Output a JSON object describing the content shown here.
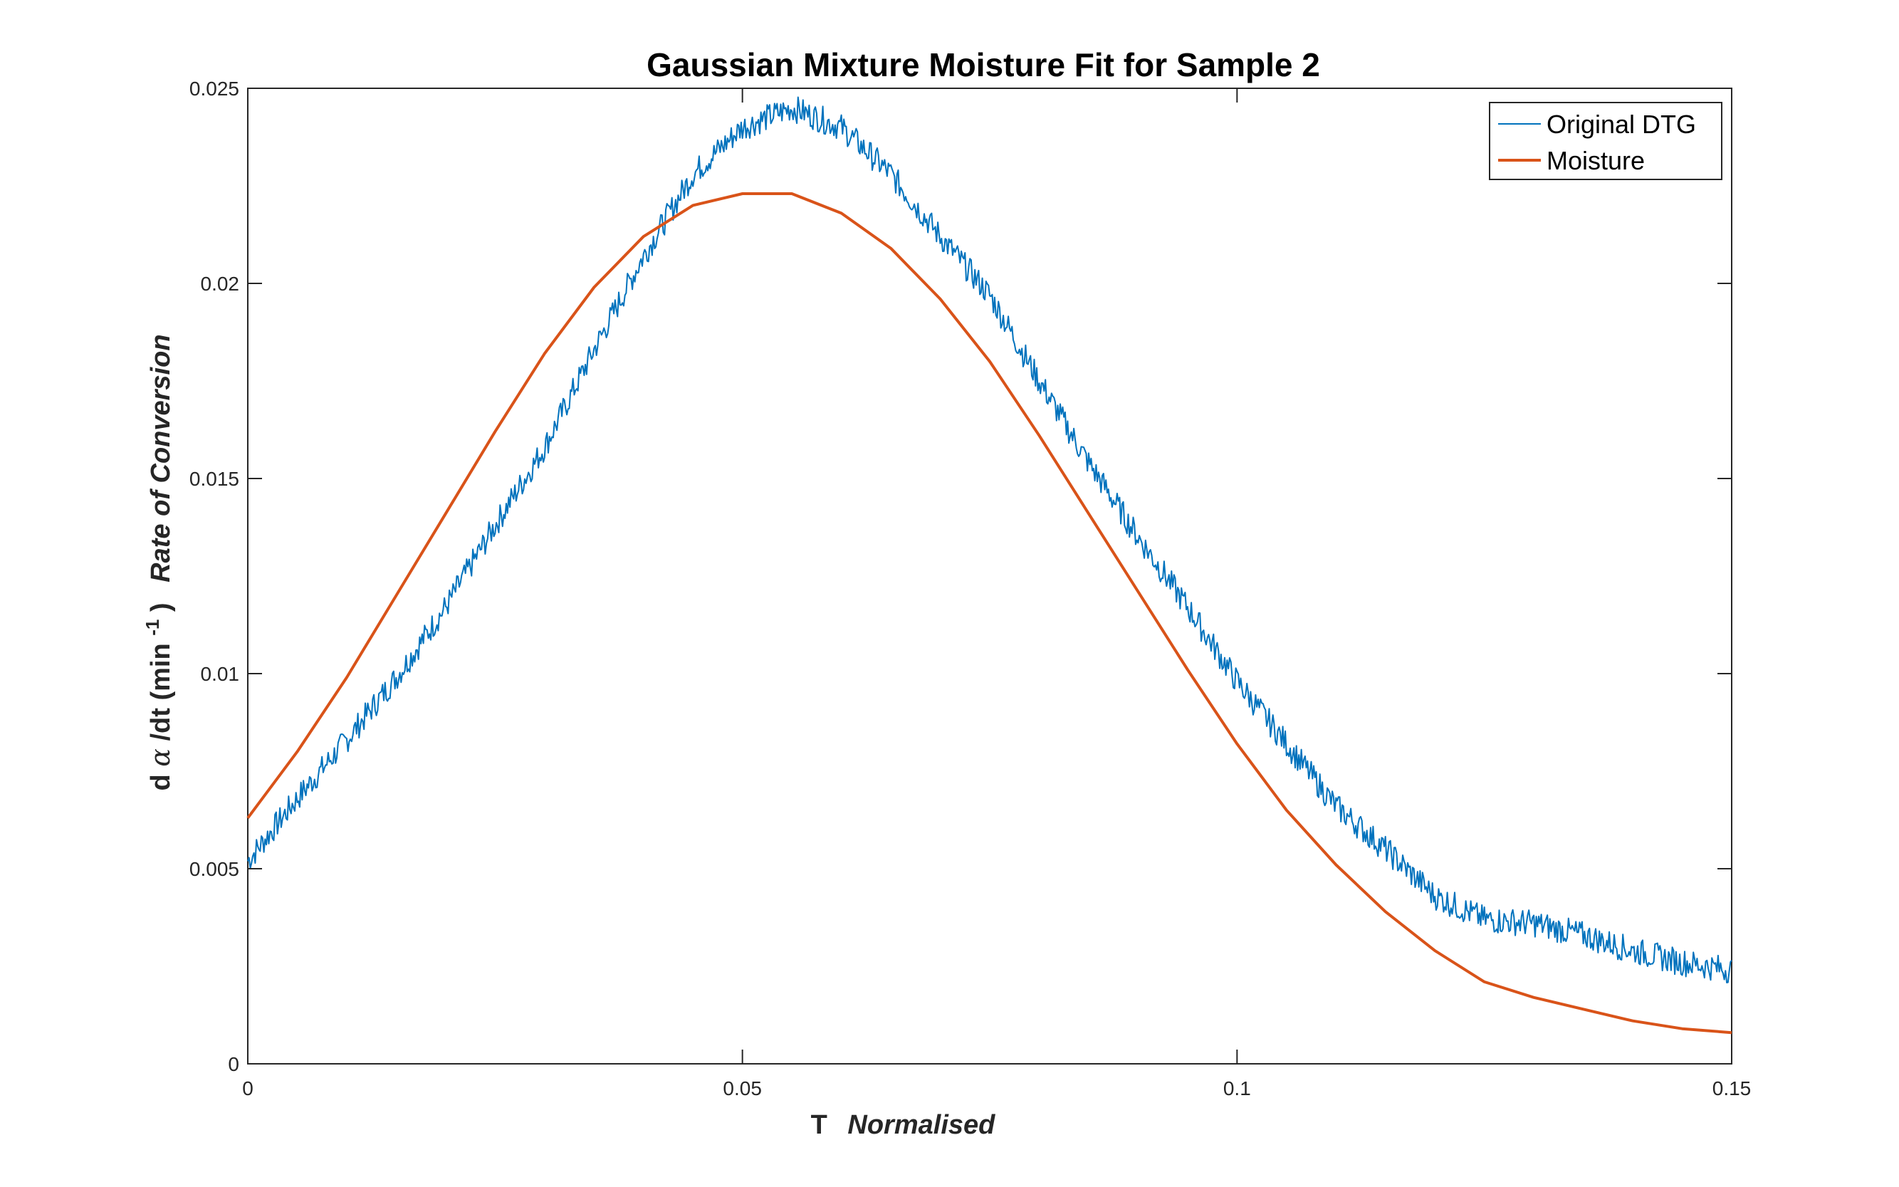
{
  "chart_data": {
    "type": "line",
    "title": "Gaussian Mixture Moisture Fit for Sample 2",
    "xlabel": {
      "main": "T",
      "italic": "Normalised"
    },
    "ylabel": {
      "prefix": "d",
      "symbol": "α",
      "main": "/dt (min",
      "superscript": "-1",
      "close": ")",
      "italic": "Rate of Conversion"
    },
    "xlim": [
      0,
      0.15
    ],
    "ylim": [
      0,
      0.025
    ],
    "xticks": [
      {
        "value": 0,
        "label": "0"
      },
      {
        "value": 0.05,
        "label": "0.05"
      },
      {
        "value": 0.1,
        "label": "0.1"
      },
      {
        "value": 0.15,
        "label": "0.15"
      }
    ],
    "yticks": [
      {
        "value": 0,
        "label": "0"
      },
      {
        "value": 0.005,
        "label": "0.005"
      },
      {
        "value": 0.01,
        "label": "0.01"
      },
      {
        "value": 0.015,
        "label": "0.015"
      },
      {
        "value": 0.02,
        "label": "0.02"
      },
      {
        "value": 0.025,
        "label": "0.025"
      }
    ],
    "grid": false,
    "legend_position": "top-right",
    "series": [
      {
        "name": "Original DTG",
        "color": "#0072BD",
        "x": [
          0,
          0.005,
          0.01,
          0.015,
          0.02,
          0.025,
          0.03,
          0.035,
          0.04,
          0.045,
          0.05,
          0.055,
          0.06,
          0.065,
          0.07,
          0.075,
          0.08,
          0.085,
          0.09,
          0.095,
          0.1,
          0.105,
          0.11,
          0.115,
          0.12,
          0.125,
          0.13,
          0.135,
          0.14,
          0.145,
          0.15
        ],
        "y": [
          0.0052,
          0.0068,
          0.0083,
          0.0099,
          0.0117,
          0.0138,
          0.0158,
          0.0183,
          0.0207,
          0.0228,
          0.024,
          0.0245,
          0.024,
          0.0228,
          0.0212,
          0.0197,
          0.0175,
          0.0154,
          0.0135,
          0.0117,
          0.0098,
          0.0082,
          0.0066,
          0.0055,
          0.0043,
          0.0037,
          0.0036,
          0.0033,
          0.0029,
          0.0026,
          0.0024
        ]
      },
      {
        "name": "Moisture",
        "color": "#D95319",
        "x": [
          0,
          0.005,
          0.01,
          0.015,
          0.02,
          0.025,
          0.03,
          0.035,
          0.04,
          0.045,
          0.05,
          0.055,
          0.06,
          0.065,
          0.07,
          0.075,
          0.08,
          0.085,
          0.09,
          0.095,
          0.1,
          0.105,
          0.11,
          0.115,
          0.12,
          0.125,
          0.13,
          0.135,
          0.14,
          0.145,
          0.15
        ],
        "y": [
          0.0063,
          0.008,
          0.0099,
          0.012,
          0.0141,
          0.0162,
          0.0182,
          0.0199,
          0.0212,
          0.022,
          0.0223,
          0.0223,
          0.0218,
          0.0209,
          0.0196,
          0.018,
          0.0161,
          0.0141,
          0.0121,
          0.0101,
          0.0082,
          0.0065,
          0.0051,
          0.0039,
          0.0029,
          0.0021,
          0.0017,
          0.0014,
          0.0011,
          0.0009,
          0.0008
        ]
      }
    ]
  }
}
